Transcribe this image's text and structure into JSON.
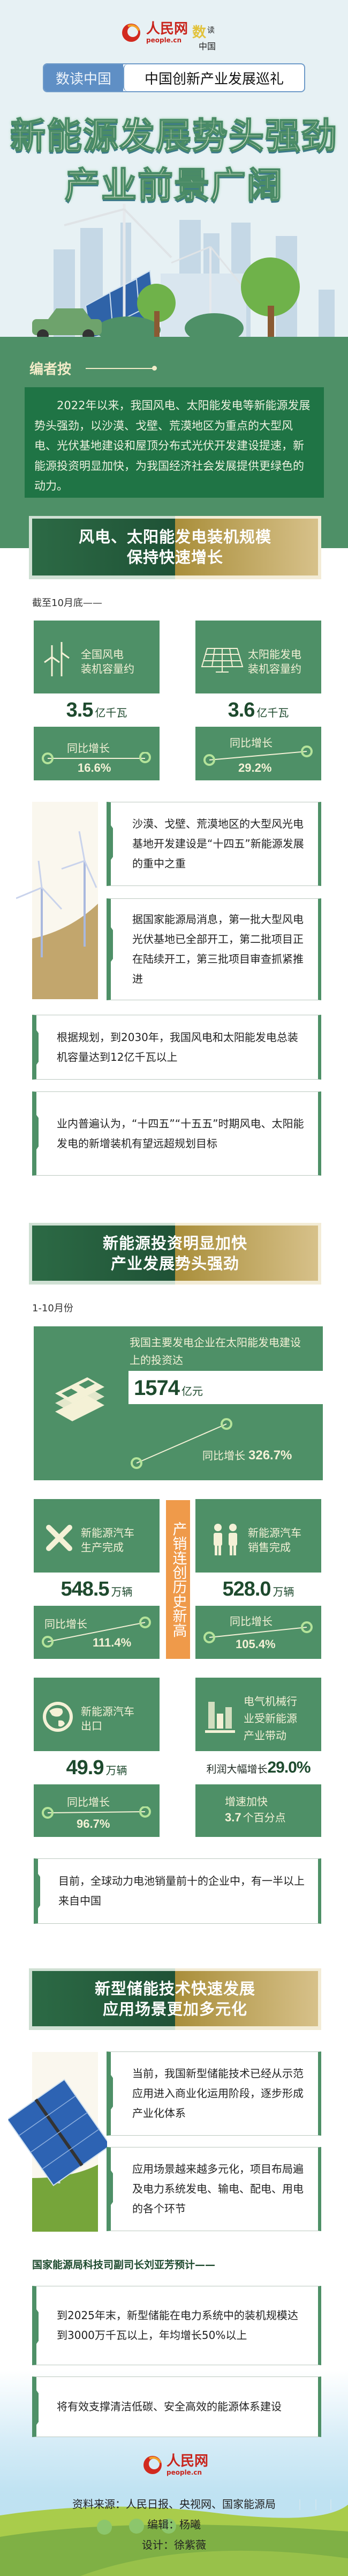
{
  "header": {
    "logo_people": "人民网",
    "logo_people_domain": "people.cn",
    "logo_shudu": "数读中国",
    "tag_left": "数读中国",
    "tag_right": "中国创新产业发展巡礼"
  },
  "title": {
    "line1": "新能源发展势头强劲",
    "line2": "产业前景广阔"
  },
  "editorial": {
    "label": "编者按",
    "text": "2022年以来，我国风电、太阳能发电等新能源发展势头强劲，以沙漠、戈壁、荒漠地区为重点的大型风电、光伏基地建设和屋顶分布式光伏开发建设提速，新能源投资明显加快，为我国经济社会发展提供更绿色的动力。"
  },
  "section1": {
    "title_line1": "风电、太阳能发电装机规模",
    "title_line2": "保持快速增长",
    "lead": "截至10月底——",
    "cards": [
      {
        "label_line1": "全国风电",
        "label_line2": "装机容量约",
        "value": "3.5",
        "unit": "亿千瓦",
        "growth_label": "同比增长",
        "growth": "16.6%",
        "icon": "wind-turbine-icon"
      },
      {
        "label_line1": "太阳能发电",
        "label_line2": "装机容量约",
        "value": "3.6",
        "unit": "亿千瓦",
        "growth_label": "同比增长",
        "growth": "29.2%",
        "icon": "solar-panel-icon"
      }
    ],
    "boxes": [
      "沙漠、戈壁、荒漠地区的大型风光电基地开发建设是“十四五”新能源发展的重中之重",
      "据国家能源局消息，第一批大型风电光伏基地已全部开工，第二批项目正在陆续开工，第三批项目审查抓紧推进",
      "根据规划，到2030年，我国风电和太阳能发电总装机容量达到12亿千瓦以上",
      "业内普遍认为，“十四五”“十五五”时期风电、太阳能发电的新增装机有望远超规划目标"
    ]
  },
  "section2": {
    "title_line1": "新能源投资明显加快",
    "title_line2": "产业发展势头强劲",
    "lead": "1-10月份",
    "investment": {
      "label": "我国主要发电企业在太阳能发电建设上的投资达",
      "value": "1574",
      "unit": "亿元",
      "growth_label": "同比增长",
      "growth": "326.7%",
      "icon": "money-stack-icon"
    },
    "record_banner": "产销连创历史新高",
    "cards": [
      {
        "label_line1": "新能源汽车",
        "label_line2": "生产完成",
        "value": "548.5",
        "unit": "万辆",
        "growth_label": "同比增长",
        "growth": "111.4%",
        "icon": "tools-icon"
      },
      {
        "label_line1": "新能源汽车",
        "label_line2": "销售完成",
        "value": "528.0",
        "unit": "万辆",
        "growth_label": "同比增长",
        "growth": "105.4%",
        "icon": "people-icon"
      },
      {
        "label_line1": "新能源汽车",
        "label_line2": "出口",
        "value": "49.9",
        "unit": "万辆",
        "growth_label": "同比增长",
        "growth": "96.7%",
        "icon": "globe-icon"
      }
    ],
    "machinery": {
      "label_lines": [
        "电气机械行",
        "业受新能源",
        "产业带动"
      ],
      "profit_label": "利润大幅增长",
      "profit": "29.0%",
      "speed_label": "增速加快",
      "speed_value": "3.7",
      "speed_unit": "个百分点",
      "icon": "bar-chart-icon"
    },
    "box": "目前，全球动力电池销量前十的企业中，有一半以上来自中国"
  },
  "section3": {
    "title_line1": "新型储能技术快速发展",
    "title_line2": "应用场景更加多元化",
    "boxes": [
      "当前，我国新型储能技术已经从示范应用进入商业化运用阶段，逐步形成产业化体系",
      "应用场景越来越多元化，项目布局遍及电力系统发电、输电、配电、用电的各个环节"
    ],
    "quote_lead": "国家能源局科技司副司长刘亚芳预计——",
    "quote_boxes": [
      "到2025年末，新型储能在电力系统中的装机规模达到3000万千瓦以上，年均增长50%以上",
      "将有效支撑清洁低碳、安全高效的能源体系建设"
    ]
  },
  "footer": {
    "logo": "人民网",
    "logo_domain": "people.cn",
    "source": "资料来源：人民日报、央视网、国家能源局",
    "editor": "编辑：杨曦",
    "designer": "设计：徐紫薇"
  },
  "colors": {
    "green": "#4e9067",
    "dark_green": "#1f7445",
    "accent_ring": "#b4e39a",
    "cream": "#f4f1d6",
    "orange": "#ef9a4a",
    "gold": "#a98e3a"
  }
}
